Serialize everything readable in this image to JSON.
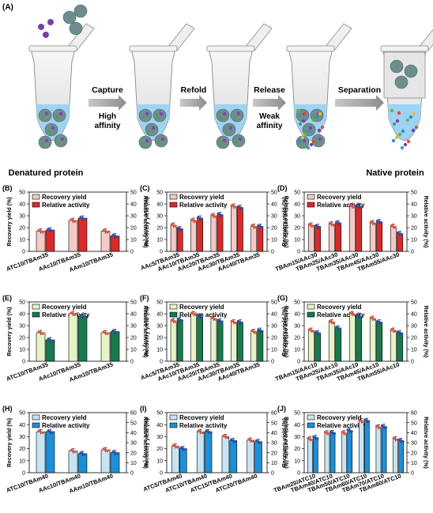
{
  "panel_a": {
    "letter": "(A)",
    "steps": [
      "Capture",
      "Refold",
      "Release",
      "Separation"
    ],
    "step_notes": [
      "High\naffinity",
      "",
      "Weak\naffinity",
      ""
    ],
    "left_caption": "Denatured protein",
    "right_caption": "Native protein"
  },
  "legend": {
    "recovery": "Recovery yield",
    "activity": "Relative activity"
  },
  "axes": {
    "left": "Recovery yield (%)",
    "right": "Relative activity (%)"
  },
  "colors": {
    "B": {
      "rec": "#f4c9c6",
      "act": "#d72b2b"
    },
    "C": {
      "rec": "#f4c9c6",
      "act": "#d72b2b"
    },
    "D": {
      "rec": "#f4c9c6",
      "act": "#d72b2b"
    },
    "E": {
      "rec": "#e6f3c8",
      "act": "#177a4c"
    },
    "F": {
      "rec": "#e6f3c8",
      "act": "#177a4c"
    },
    "G": {
      "rec": "#e6f3c8",
      "act": "#177a4c"
    },
    "H": {
      "rec": "#c7e4f4",
      "act": "#1d8fd6"
    },
    "I": {
      "rec": "#c7e4f4",
      "act": "#1d8fd6"
    },
    "J": {
      "rec": "#c7e4f4",
      "act": "#1d8fd6"
    }
  },
  "chart_data": [
    {
      "id": "B",
      "letter": "(B)",
      "type": "bar",
      "ylim": [
        0,
        50
      ],
      "y2lim": [
        0,
        50
      ],
      "yticks": [
        0,
        10,
        20,
        30,
        40,
        50
      ],
      "categories": [
        "ATC10/TBAm35",
        "AAc10/TBAm35",
        "AAm10/TBAm35"
      ],
      "series": [
        {
          "name": "Recovery yield",
          "values": [
            17,
            26,
            17
          ]
        },
        {
          "name": "Relative activity",
          "values": [
            18,
            28,
            13
          ]
        }
      ]
    },
    {
      "id": "C",
      "letter": "(C)",
      "type": "bar",
      "ylim": [
        0,
        50
      ],
      "y2lim": [
        0,
        50
      ],
      "yticks": [
        0,
        10,
        20,
        30,
        40,
        50
      ],
      "categories": [
        "AAc5/TBAm35",
        "AAc10/TBAm35",
        "AAc20/TBAm35",
        "AAc30/TBAm35",
        "AAc40/TBAm35"
      ],
      "series": [
        {
          "name": "Recovery yield",
          "values": [
            22,
            26,
            30,
            38,
            21
          ]
        },
        {
          "name": "Relative activity",
          "values": [
            19,
            28,
            31,
            37,
            21
          ]
        }
      ]
    },
    {
      "id": "D",
      "letter": "(D)",
      "type": "bar",
      "ylim": [
        0,
        50
      ],
      "y2lim": [
        0,
        50
      ],
      "yticks": [
        0,
        10,
        20,
        30,
        40,
        50
      ],
      "categories": [
        "TBAm15/AAc30",
        "TBAm25/AAc30",
        "TBAm35/AAc30",
        "TBAm45/AAc30",
        "TBAm55/AAc30"
      ],
      "series": [
        {
          "name": "Recovery yield",
          "values": [
            22,
            23,
            38,
            24,
            21
          ]
        },
        {
          "name": "Relative activity",
          "values": [
            21,
            24,
            38,
            25,
            15
          ]
        }
      ]
    },
    {
      "id": "E",
      "letter": "(E)",
      "type": "bar",
      "ylim": [
        0,
        50
      ],
      "y2lim": [
        0,
        50
      ],
      "yticks": [
        0,
        10,
        20,
        30,
        40,
        50
      ],
      "categories": [
        "ATC10/TBAm35",
        "AAc10/TBAm35",
        "AAm10/TBAm35"
      ],
      "series": [
        {
          "name": "Recovery yield",
          "values": [
            24,
            40,
            24
          ]
        },
        {
          "name": "Relative activity",
          "values": [
            18,
            38,
            25
          ]
        }
      ]
    },
    {
      "id": "F",
      "letter": "(F)",
      "type": "bar",
      "ylim": [
        0,
        50
      ],
      "y2lim": [
        0,
        50
      ],
      "yticks": [
        0,
        10,
        20,
        30,
        40,
        50
      ],
      "categories": [
        "AAc5/TBAm35",
        "AAc10/TBAm35",
        "AAc20/TBAm35",
        "AAc30/TBAm35",
        "AAc40/TBAm35"
      ],
      "series": [
        {
          "name": "Recovery yield",
          "values": [
            34,
            40,
            36,
            33,
            25
          ]
        },
        {
          "name": "Relative activity",
          "values": [
            35,
            38,
            34,
            33,
            26
          ]
        }
      ]
    },
    {
      "id": "G",
      "letter": "(G)",
      "type": "bar",
      "ylim": [
        0,
        50
      ],
      "y2lim": [
        0,
        50
      ],
      "yticks": [
        0,
        10,
        20,
        30,
        40,
        50
      ],
      "categories": [
        "TBAm15/AAc10",
        "TBAm25/AAc10",
        "TBAm35/AAc10",
        "TBAm45/AAc10",
        "TBAm55/AAc10"
      ],
      "series": [
        {
          "name": "Recovery yield",
          "values": [
            26,
            33,
            40,
            36,
            26
          ]
        },
        {
          "name": "Relative activity",
          "values": [
            24,
            28,
            38,
            33,
            24
          ]
        }
      ]
    },
    {
      "id": "H",
      "letter": "(H)",
      "type": "bar",
      "ylim": [
        0,
        50
      ],
      "y2lim": [
        0,
        60
      ],
      "yticks": [
        0,
        10,
        20,
        30,
        40,
        50
      ],
      "y2ticks": [
        0,
        10,
        20,
        30,
        40,
        50,
        60
      ],
      "categories": [
        "ATC10/TBAm40",
        "AAc10/TBAm40",
        "AAm10/TBAm40"
      ],
      "series": [
        {
          "name": "Recovery yield",
          "values": [
            34,
            18,
            19
          ]
        },
        {
          "name": "Relative activity",
          "values": [
            41,
            19,
            20
          ]
        }
      ]
    },
    {
      "id": "I",
      "letter": "(I)",
      "type": "bar",
      "ylim": [
        0,
        50
      ],
      "y2lim": [
        0,
        60
      ],
      "yticks": [
        0,
        10,
        20,
        30,
        40,
        50
      ],
      "y2ticks": [
        0,
        10,
        20,
        30,
        40,
        50,
        60
      ],
      "categories": [
        "ATC5/TBAm40",
        "ATC10/TBAm40",
        "ATC15/TBAm40",
        "ATC20/TBAm40"
      ],
      "series": [
        {
          "name": "Recovery yield",
          "values": [
            22,
            34,
            30,
            27
          ]
        },
        {
          "name": "Relative activity",
          "values": [
            24,
            41,
            32,
            31
          ]
        }
      ]
    },
    {
      "id": "J",
      "letter": "(J)",
      "type": "bar",
      "ylim": [
        0,
        50
      ],
      "y2lim": [
        0,
        60
      ],
      "yticks": [
        0,
        10,
        20,
        30,
        40,
        50
      ],
      "y2ticks": [
        0,
        10,
        20,
        30,
        40,
        50,
        60
      ],
      "categories": [
        "TBAm20/ATC10",
        "TBAm40/ATC10",
        "TBAm50/ATC10",
        "TBAm60/ATC10",
        "TBAm70/ATC10",
        "TBAm80/ATC10"
      ],
      "series": [
        {
          "name": "Recovery yield",
          "values": [
            28,
            33,
            33,
            43,
            38,
            28
          ]
        },
        {
          "name": "Relative activity",
          "values": [
            35,
            40,
            42,
            52,
            46,
            32
          ]
        }
      ]
    }
  ]
}
